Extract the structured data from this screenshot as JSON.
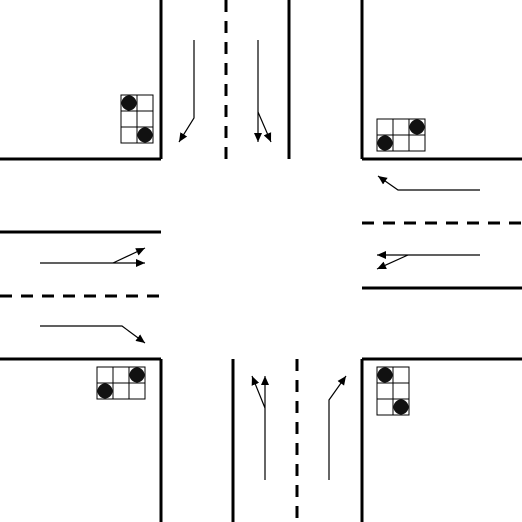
{
  "diagram": {
    "description_hidden": "",
    "colors": {
      "background": "#ffffff",
      "line": "#000000",
      "signal_on": "#111111",
      "signal_cell": "#ffffff"
    },
    "signals": [
      {
        "id": "nw",
        "layout": "vertical-3x2",
        "lit": [
          "r0c0",
          "r2c1"
        ]
      },
      {
        "id": "ne",
        "layout": "horizontal-2x3",
        "lit": [
          "r0c2",
          "r1c0"
        ]
      },
      {
        "id": "sw",
        "layout": "horizontal-2x3",
        "lit": [
          "r0c2",
          "r1c0"
        ]
      },
      {
        "id": "se",
        "layout": "vertical-3x2",
        "lit": [
          "r0c0",
          "r2c1"
        ]
      }
    ],
    "arrows": [
      {
        "id": "north-left-turn",
        "meaning": "left-turn"
      },
      {
        "id": "north-straight-right",
        "meaning": "straight-and-right"
      },
      {
        "id": "east-left-turn",
        "meaning": "left-turn"
      },
      {
        "id": "east-straight-right",
        "meaning": "straight-and-right"
      },
      {
        "id": "west-straight-right",
        "meaning": "straight-and-right"
      },
      {
        "id": "west-left-turn",
        "meaning": "left-turn"
      },
      {
        "id": "south-straight-right",
        "meaning": "straight-and-right"
      },
      {
        "id": "south-left-turn",
        "meaning": "left-turn"
      }
    ]
  }
}
